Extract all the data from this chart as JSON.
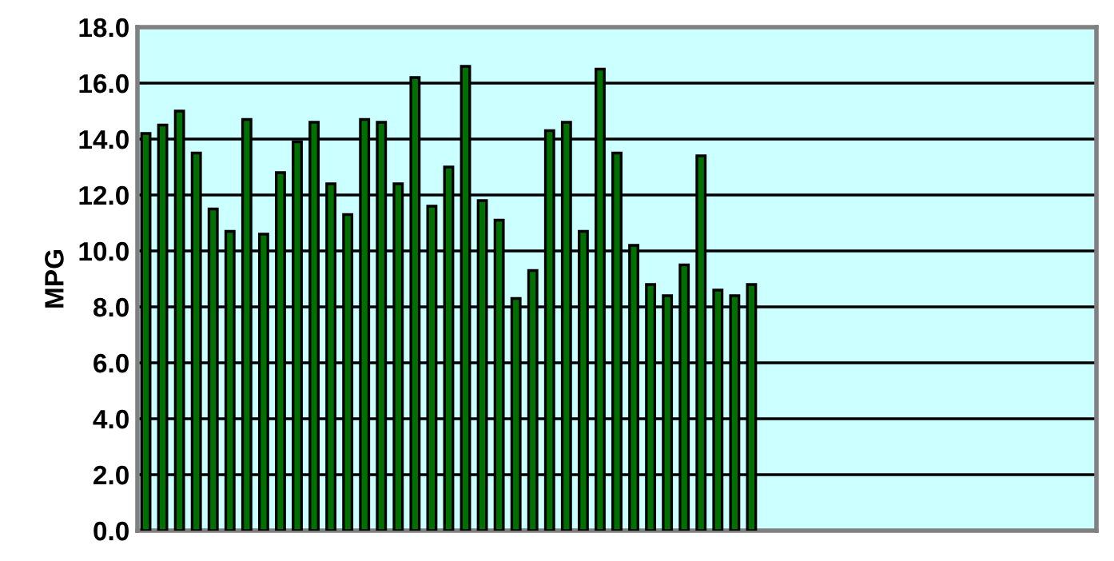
{
  "chart_data": {
    "type": "bar",
    "ylabel": "MPG",
    "categories": [
      null,
      null,
      null,
      null,
      null,
      null,
      null,
      null,
      null,
      null,
      null,
      null,
      null,
      null,
      null,
      null,
      null,
      null,
      null,
      null,
      null,
      null,
      null,
      null,
      null,
      null,
      null,
      null,
      null,
      null,
      null,
      null,
      null,
      null,
      null,
      null,
      null,
      null,
      null,
      null,
      null,
      null,
      null,
      null,
      null,
      null,
      null,
      null,
      null,
      null,
      null,
      null,
      null,
      null,
      null,
      null,
      null
    ],
    "values": [
      14.2,
      14.5,
      15.0,
      13.5,
      11.5,
      10.7,
      14.7,
      10.6,
      12.8,
      13.9,
      14.6,
      12.4,
      11.3,
      14.7,
      14.6,
      12.4,
      16.2,
      11.6,
      13.0,
      16.6,
      11.8,
      11.1,
      8.3,
      9.3,
      14.3,
      14.6,
      10.7,
      16.5,
      13.5,
      10.2,
      8.8,
      8.4,
      9.5,
      13.4,
      8.6,
      8.4,
      8.8,
      null,
      null,
      null,
      null,
      null,
      null,
      null,
      null,
      null,
      null,
      null,
      null,
      null,
      null,
      null,
      null,
      null,
      null,
      null,
      null
    ],
    "color": "#007000",
    "ylim": [
      0,
      18
    ],
    "yticks": [
      {
        "value": 0,
        "label": "0.0"
      },
      {
        "value": 2,
        "label": "2.0"
      },
      {
        "value": 4,
        "label": "4.0"
      },
      {
        "value": 6,
        "label": "6.0"
      },
      {
        "value": 8,
        "label": "8.0"
      },
      {
        "value": 10,
        "label": "10.0"
      },
      {
        "value": 12,
        "label": "12.0"
      },
      {
        "value": 14,
        "label": "14.0"
      },
      {
        "value": 16,
        "label": "16.0"
      },
      {
        "value": 18,
        "label": "18.0"
      }
    ],
    "grid": "y",
    "tick_labels": "y"
  }
}
